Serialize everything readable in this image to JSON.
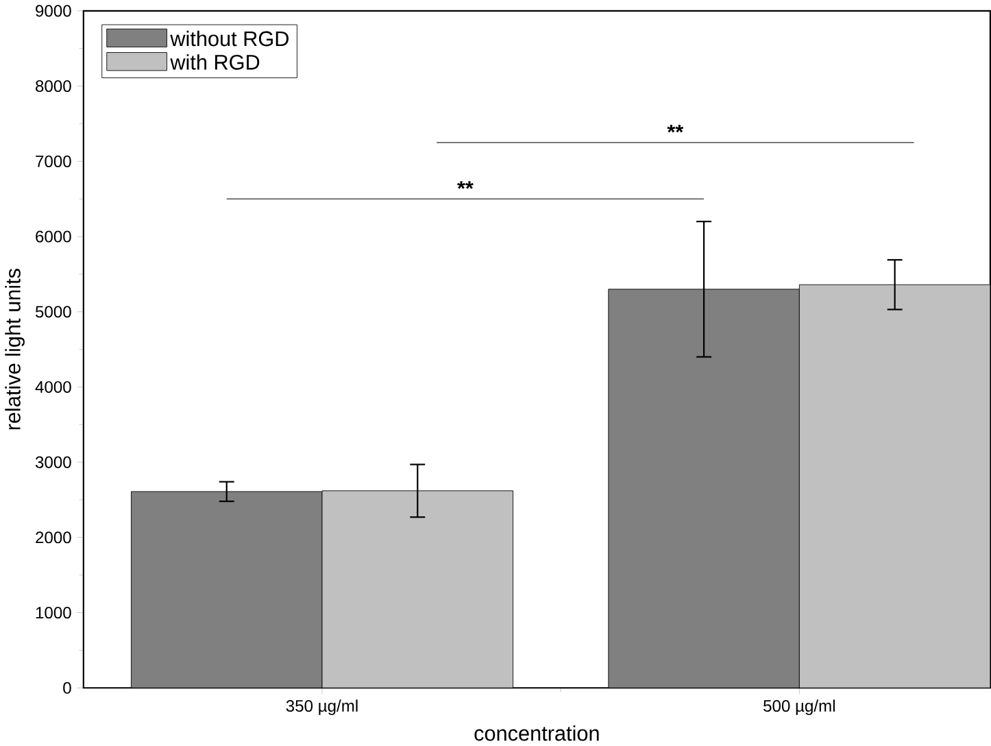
{
  "chart_data": {
    "type": "bar",
    "xlabel": "concentration",
    "ylabel": "relative light units",
    "categories": [
      "350 µg/ml",
      "500 µg/ml"
    ],
    "series": [
      {
        "name": "without RGD",
        "color": "#808080",
        "values": [
          2610,
          5300
        ],
        "errors": [
          130,
          900
        ]
      },
      {
        "name": "with RGD",
        "color": "#c0c0c0",
        "values": [
          2620,
          5360
        ],
        "errors": [
          350,
          330
        ]
      }
    ],
    "ylim": [
      0,
      9000
    ],
    "yticks": [
      0,
      1000,
      2000,
      3000,
      4000,
      5000,
      6000,
      7000,
      8000,
      9000
    ],
    "annotations": [
      "**",
      "**"
    ],
    "legend": "top left",
    "grid": false
  }
}
